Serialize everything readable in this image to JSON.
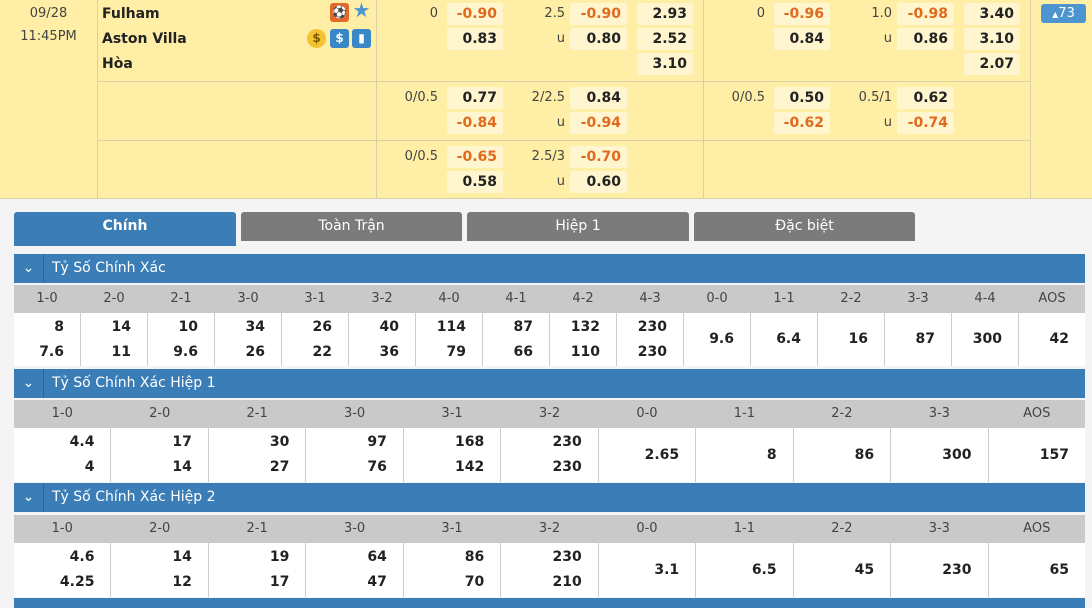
{
  "match": {
    "date": "09/28",
    "time": "11:45PM",
    "home": "Fulham",
    "away": "Aston Villa",
    "draw": "Hòa",
    "more_count": "73",
    "more_arrow": "▲"
  },
  "odds": {
    "ft_main": {
      "hdp_line": "0",
      "hdp_home": "-0.90",
      "hdp_away": "0.83",
      "ou_line": "2.5",
      "ou_over": "-0.90",
      "ou_u": "u",
      "ou_under": "0.80",
      "x1": "2.93",
      "x2": "2.52",
      "xd": "3.10"
    },
    "ft_alt1": {
      "hdp_line": "0/0.5",
      "hdp_home": "0.77",
      "hdp_away": "-0.84",
      "ou_line": "2/2.5",
      "ou_over": "0.84",
      "ou_u": "u",
      "ou_under": "-0.94"
    },
    "ft_alt2": {
      "hdp_line": "0/0.5",
      "hdp_home": "-0.65",
      "hdp_away": "0.58",
      "ou_line": "2.5/3",
      "ou_over": "-0.70",
      "ou_u": "u",
      "ou_under": "0.60"
    },
    "h1_main": {
      "hdp_line": "0",
      "hdp_home": "-0.96",
      "hdp_away": "0.84",
      "ou_line": "1.0",
      "ou_over": "-0.98",
      "ou_u": "u",
      "ou_under": "0.86",
      "x1": "3.40",
      "x2": "3.10",
      "xd": "2.07"
    },
    "h1_alt1": {
      "hdp_line": "0/0.5",
      "hdp_home": "0.50",
      "hdp_away": "-0.62",
      "ou_line": "0.5/1",
      "ou_over": "0.62",
      "ou_u": "u",
      "ou_under": "-0.74"
    }
  },
  "icons": {
    "home": [
      "player-icon",
      "star-icon"
    ],
    "away": [
      "coin-icon",
      "dollar-icon",
      "stats-icon"
    ]
  },
  "colors": {
    "accent": "#3b7db6",
    "negative": "#e06a1e",
    "row_bg": "#feeea6"
  },
  "tabs": [
    {
      "label": "Chính",
      "active": true
    },
    {
      "label": "Toàn Trận"
    },
    {
      "label": "Hiệp 1"
    },
    {
      "label": "Đặc biệt"
    }
  ],
  "sections": [
    {
      "title": "Tỷ Số Chính Xác",
      "cols": [
        {
          "h": "1-0",
          "a": "8",
          "b": "7.6"
        },
        {
          "h": "2-0",
          "a": "14",
          "b": "11"
        },
        {
          "h": "2-1",
          "a": "10",
          "b": "9.6"
        },
        {
          "h": "3-0",
          "a": "34",
          "b": "26"
        },
        {
          "h": "3-1",
          "a": "26",
          "b": "22"
        },
        {
          "h": "3-2",
          "a": "40",
          "b": "36"
        },
        {
          "h": "4-0",
          "a": "114",
          "b": "79"
        },
        {
          "h": "4-1",
          "a": "87",
          "b": "66"
        },
        {
          "h": "4-2",
          "a": "132",
          "b": "110"
        },
        {
          "h": "4-3",
          "a": "230",
          "b": "230"
        },
        {
          "h": "0-0",
          "a": "9.6"
        },
        {
          "h": "1-1",
          "a": "6.4"
        },
        {
          "h": "2-2",
          "a": "16"
        },
        {
          "h": "3-3",
          "a": "87"
        },
        {
          "h": "4-4",
          "a": "300"
        },
        {
          "h": "AOS",
          "a": "42"
        }
      ]
    },
    {
      "title": "Tỷ Số Chính Xác Hiệp 1",
      "cols": [
        {
          "h": "1-0",
          "a": "4.4",
          "b": "4"
        },
        {
          "h": "2-0",
          "a": "17",
          "b": "14"
        },
        {
          "h": "2-1",
          "a": "30",
          "b": "27"
        },
        {
          "h": "3-0",
          "a": "97",
          "b": "76"
        },
        {
          "h": "3-1",
          "a": "168",
          "b": "142"
        },
        {
          "h": "3-2",
          "a": "230",
          "b": "230"
        },
        {
          "h": "0-0",
          "a": "2.65"
        },
        {
          "h": "1-1",
          "a": "8"
        },
        {
          "h": "2-2",
          "a": "86"
        },
        {
          "h": "3-3",
          "a": "300"
        },
        {
          "h": "AOS",
          "a": "157"
        }
      ]
    },
    {
      "title": "Tỷ Số Chính Xác Hiệp 2",
      "cols": [
        {
          "h": "1-0",
          "a": "4.6",
          "b": "4.25"
        },
        {
          "h": "2-0",
          "a": "14",
          "b": "12"
        },
        {
          "h": "2-1",
          "a": "19",
          "b": "17"
        },
        {
          "h": "3-0",
          "a": "64",
          "b": "47"
        },
        {
          "h": "3-1",
          "a": "86",
          "b": "70"
        },
        {
          "h": "3-2",
          "a": "230",
          "b": "210"
        },
        {
          "h": "0-0",
          "a": "3.1"
        },
        {
          "h": "1-1",
          "a": "6.5"
        },
        {
          "h": "2-2",
          "a": "45"
        },
        {
          "h": "3-3",
          "a": "230"
        },
        {
          "h": "AOS",
          "a": "65"
        }
      ]
    }
  ]
}
